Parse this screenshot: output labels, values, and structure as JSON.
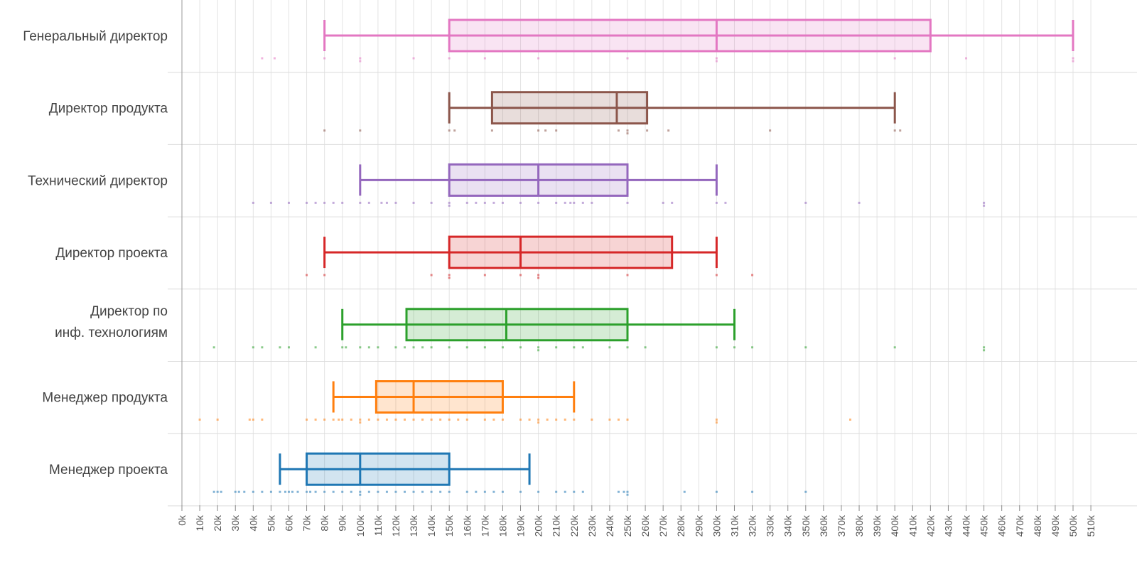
{
  "chart_data": {
    "type": "boxplot",
    "orientation": "horizontal",
    "title": "",
    "xlabel": "",
    "ylabel": "",
    "xlim": [
      0,
      510
    ],
    "grid": true,
    "x_ticks": [
      "0k",
      "10k",
      "20k",
      "30k",
      "40k",
      "50k",
      "60k",
      "70k",
      "80k",
      "90k",
      "100k",
      "110k",
      "120k",
      "130k",
      "140k",
      "150k",
      "160k",
      "170k",
      "180k",
      "190k",
      "200k",
      "210k",
      "220k",
      "230k",
      "240k",
      "250k",
      "260k",
      "270k",
      "280k",
      "290k",
      "300k",
      "310k",
      "320k",
      "330k",
      "340k",
      "350k",
      "360k",
      "370k",
      "380k",
      "390k",
      "400k",
      "410k",
      "420k",
      "430k",
      "440k",
      "450k",
      "460k",
      "470k",
      "480k",
      "490k",
      "500k",
      "510k"
    ],
    "series": [
      {
        "name": "Генеральный директор",
        "label_lines": [
          "Генеральный директор"
        ],
        "color": "#e377c2",
        "whisker_low": 80,
        "q1": 150,
        "median": 300,
        "q3": 420,
        "whisker_high": 500,
        "points": [
          45,
          52,
          80,
          100,
          130,
          150,
          170,
          200,
          250,
          300,
          400,
          440,
          500
        ]
      },
      {
        "name": "Директор продукта",
        "label_lines": [
          "Директор продукта"
        ],
        "color": "#8c564b",
        "whisker_low": 150,
        "q1": 174,
        "median": 244,
        "q3": 261,
        "whisker_high": 400,
        "points": [
          80,
          100,
          150,
          153,
          174,
          200,
          204,
          210,
          245,
          250,
          261,
          273,
          330,
          400,
          403
        ]
      },
      {
        "name": "Технический директор",
        "label_lines": [
          "Технический директор"
        ],
        "color": "#9467bd",
        "whisker_low": 100,
        "q1": 150,
        "median": 200,
        "q3": 250,
        "whisker_high": 300,
        "points": [
          40,
          50,
          60,
          70,
          75,
          80,
          85,
          90,
          100,
          105,
          112,
          115,
          120,
          130,
          140,
          150,
          160,
          165,
          170,
          175,
          180,
          190,
          200,
          210,
          215,
          218,
          220,
          225,
          230,
          250,
          270,
          275,
          300,
          305,
          350,
          380,
          450
        ]
      },
      {
        "name": "Директор проекта",
        "label_lines": [
          "Директор проекта"
        ],
        "color": "#d62728",
        "whisker_low": 80,
        "q1": 150,
        "median": 190,
        "q3": 275,
        "whisker_high": 300,
        "points": [
          70,
          80,
          140,
          150,
          170,
          190,
          200,
          250,
          300,
          320
        ]
      },
      {
        "name": "Директор по инф. технологиям",
        "label_lines": [
          "Директор по",
          "инф. технологиям"
        ],
        "color": "#2ca02c",
        "whisker_low": 90,
        "q1": 126,
        "median": 182,
        "q3": 250,
        "whisker_high": 310,
        "points": [
          18,
          40,
          45,
          55,
          60,
          75,
          90,
          92,
          100,
          105,
          110,
          120,
          125,
          130,
          135,
          140,
          150,
          160,
          170,
          180,
          190,
          200,
          210,
          220,
          225,
          240,
          250,
          260,
          300,
          310,
          320,
          350,
          400,
          450
        ]
      },
      {
        "name": "Менеджер продукта",
        "label_lines": [
          "Менеджер продукта"
        ],
        "color": "#ff7f0e",
        "whisker_low": 85,
        "q1": 109,
        "median": 130,
        "q3": 180,
        "whisker_high": 220,
        "points": [
          10,
          20,
          38,
          40,
          45,
          70,
          75,
          80,
          85,
          88,
          90,
          95,
          100,
          105,
          110,
          115,
          120,
          125,
          130,
          135,
          140,
          145,
          150,
          155,
          160,
          170,
          175,
          180,
          190,
          195,
          200,
          205,
          210,
          215,
          220,
          230,
          240,
          245,
          250,
          300,
          375
        ]
      },
      {
        "name": "Менеджер проекта",
        "label_lines": [
          "Менеджер проекта"
        ],
        "color": "#1f77b4",
        "whisker_low": 55,
        "q1": 70,
        "median": 100,
        "q3": 150,
        "whisker_high": 195,
        "points": [
          18,
          20,
          22,
          30,
          32,
          35,
          40,
          45,
          50,
          55,
          58,
          60,
          62,
          65,
          70,
          72,
          75,
          80,
          85,
          90,
          95,
          100,
          105,
          110,
          115,
          120,
          125,
          130,
          135,
          140,
          145,
          150,
          160,
          165,
          170,
          175,
          180,
          190,
          200,
          210,
          215,
          220,
          225,
          245,
          248,
          250,
          282,
          300,
          320,
          350
        ]
      }
    ]
  }
}
